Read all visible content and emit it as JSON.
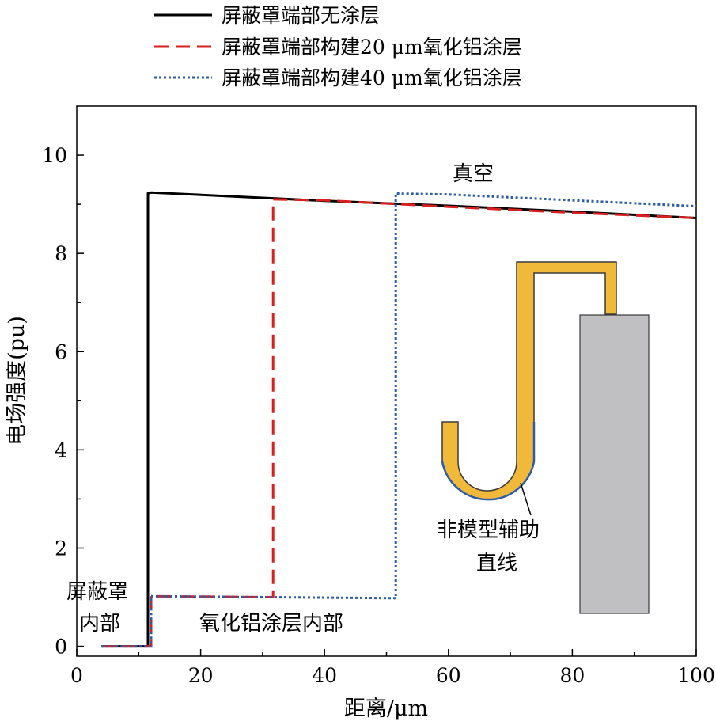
{
  "chart_data": {
    "type": "line",
    "xlabel": "距离/μm",
    "ylabel": "电场强度(pu)",
    "xlim": [
      0,
      100
    ],
    "ylim": [
      -0.2,
      11
    ],
    "xticks": [
      0,
      20,
      40,
      60,
      80,
      100
    ],
    "yticks": [
      0,
      2,
      4,
      6,
      8,
      10
    ],
    "grid": false,
    "legend_position": "top",
    "series": [
      {
        "name": "屏蔽罩端部无涂层",
        "color": "#000000",
        "dash": "solid",
        "x": [
          4,
          11.5,
          11.5,
          12,
          40,
          60,
          80,
          100
        ],
        "y": [
          0,
          0,
          9.22,
          9.24,
          9.07,
          8.97,
          8.85,
          8.72
        ]
      },
      {
        "name": "屏蔽罩端部构建20 μm氧化铝涂层",
        "color": "#d9201f",
        "dash": "dashed",
        "x": [
          4,
          12,
          12,
          31.7,
          31.7,
          40,
          60,
          80,
          100
        ],
        "y": [
          0,
          0,
          1.02,
          1.0,
          9.1,
          9.08,
          8.95,
          8.83,
          8.72
        ]
      },
      {
        "name": "屏蔽罩端部构建40 μm氧化铝涂层",
        "color": "#2a5caa",
        "dash": "dotted",
        "x": [
          4,
          12,
          12,
          51.5,
          51.5,
          60,
          80,
          100
        ],
        "y": [
          0,
          0,
          1.02,
          0.98,
          9.22,
          9.2,
          9.08,
          8.96
        ]
      }
    ],
    "annotations": {
      "vacuum": "真空",
      "shield_inner_line1": "屏蔽罩",
      "shield_inner_line2": "内部",
      "coating_inner": "氧化铝涂层内部",
      "aux_line_line1": "非模型辅助",
      "aux_line_line2": "直线"
    },
    "colors": {
      "shield_fill": "#f0b93a",
      "shield_edge": "#3a3a3a",
      "electrode_fill": "#c0bfc1",
      "coating_edge": "#2a5caa"
    }
  }
}
